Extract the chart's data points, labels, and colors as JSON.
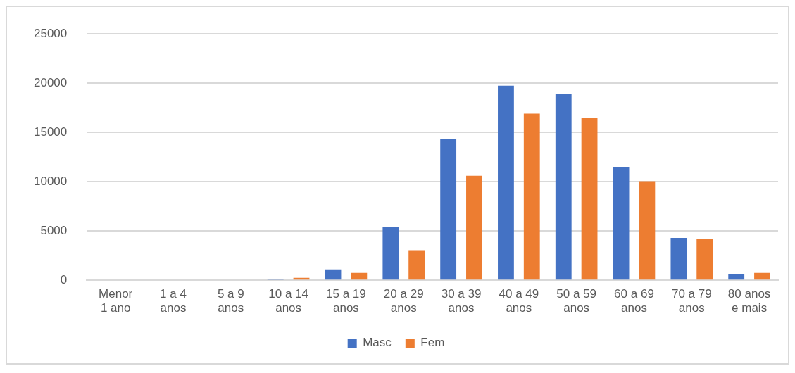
{
  "chart_data": {
    "type": "bar",
    "categories": [
      "Menor 1 ano",
      "1 a 4 anos",
      "5 a 9 anos",
      "10 a 14 anos",
      "15 a 19 anos",
      "20 a 29 anos",
      "30 a 39 anos",
      "40 a 49 anos",
      "50 a 59 anos",
      "60 a 69 anos",
      "70 a 79 anos",
      "80 anos e mais"
    ],
    "series": [
      {
        "name": "Masc",
        "color": "#4472c4",
        "values": [
          0,
          0,
          0,
          150,
          1100,
          5450,
          14300,
          19750,
          18900,
          11500,
          4300,
          650
        ]
      },
      {
        "name": "Fem",
        "color": "#ed7d31",
        "values": [
          0,
          0,
          0,
          250,
          750,
          3050,
          10600,
          16900,
          16500,
          10050,
          4200,
          750
        ]
      }
    ],
    "ylim": [
      0,
      25000
    ],
    "yticks": [
      0,
      5000,
      10000,
      15000,
      20000,
      25000
    ],
    "grid": "y",
    "legend": "bottom"
  }
}
